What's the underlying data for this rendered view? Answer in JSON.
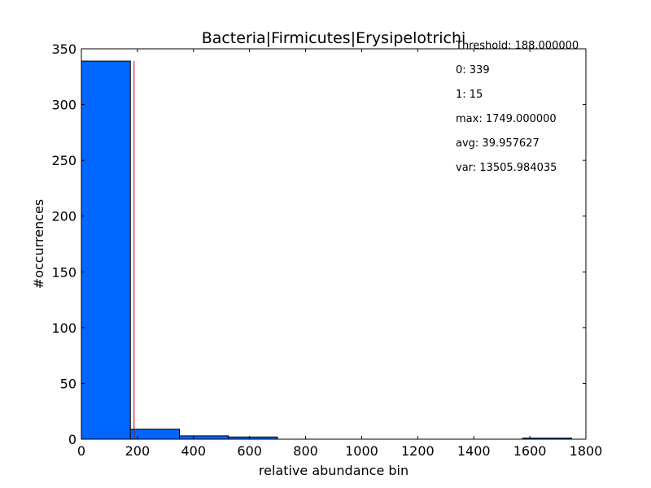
{
  "chart_data": {
    "type": "bar",
    "title": "Bacteria|Firmicutes|Erysipelotrichi",
    "xlabel": "relative abundance bin",
    "ylabel": "#occurrences",
    "xlim": [
      0,
      1800
    ],
    "ylim": [
      0,
      350
    ],
    "xticks": [
      "0",
      "200",
      "400",
      "600",
      "800",
      "1000",
      "1200",
      "1400",
      "1600",
      "1800"
    ],
    "yticks": [
      "0",
      "50",
      "100",
      "150",
      "200",
      "250",
      "300",
      "350"
    ],
    "bin_edges": [
      0,
      174.9,
      349.8,
      524.7,
      699.6,
      874.5,
      1049.4,
      1224.3,
      1399.2,
      1574.1,
      1749
    ],
    "values": [
      339,
      9,
      3,
      2,
      0,
      0,
      0,
      0,
      0,
      1
    ],
    "bar_color": "#0066ff",
    "threshold": 188,
    "threshold_color": "#cc0000",
    "grid": false,
    "annotations": [
      "Threshold: 188.000000",
      "0: 339",
      "1: 15",
      "max: 1749.000000",
      "avg: 39.957627",
      "var: 13505.984035"
    ]
  }
}
